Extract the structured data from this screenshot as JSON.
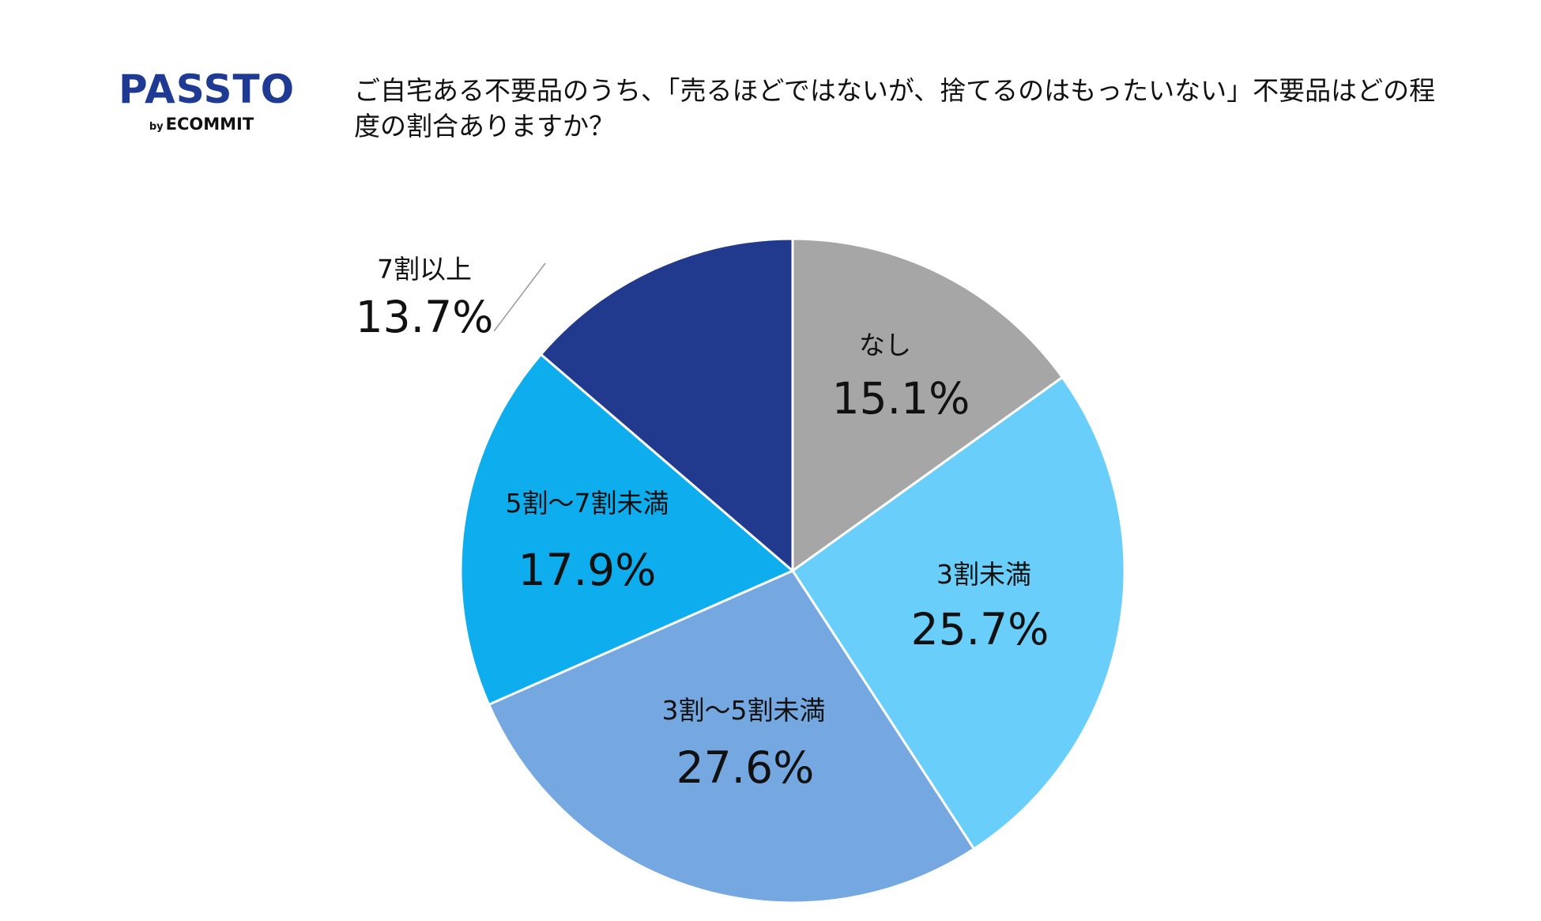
{
  "logo": {
    "main": "PASSTO",
    "by": "by",
    "sub": "ECOMMIT",
    "color": "#1f3a93"
  },
  "chart_data": {
    "type": "pie",
    "title": "ご自宅ある不要品のうち、「売るほどではないが、捨てるのはもったいない」不要品はどの程度の割合ありますか？",
    "start_angle_deg": 0,
    "direction": "clockwise",
    "slices": [
      {
        "label": "なし",
        "value": 15.1,
        "value_label": "15.1%",
        "color": "#a6a6a6"
      },
      {
        "label": "3割未満",
        "value": 25.7,
        "value_label": "25.7%",
        "color": "#69cffa"
      },
      {
        "label": "3割〜5割未満",
        "value": 27.6,
        "value_label": "27.6%",
        "color": "#75a8e0"
      },
      {
        "label": "5割〜7割未満",
        "value": 17.9,
        "value_label": "17.9%",
        "color": "#0eaded"
      },
      {
        "label": "7割以上",
        "value": 13.7,
        "value_label": "13.7%",
        "color": "#223a8e"
      }
    ],
    "legend": "none"
  }
}
